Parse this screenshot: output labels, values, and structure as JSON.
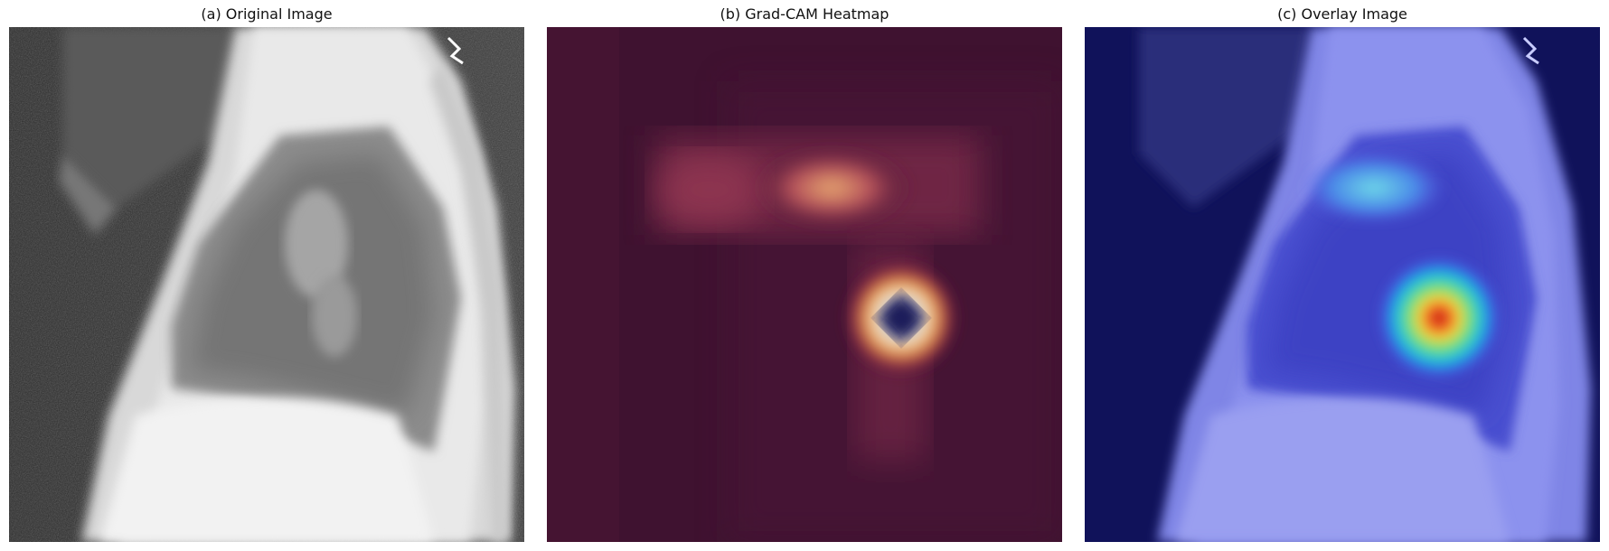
{
  "figure": {
    "panels": [
      {
        "id": "a",
        "title": "(a) Original Image"
      },
      {
        "id": "b",
        "title": "(b) Grad-CAM Heatmap"
      },
      {
        "id": "c",
        "title": "(c) Overlay Image"
      }
    ]
  },
  "colors": {
    "background": "#ffffff",
    "heatmap_base": "#3f1230",
    "heatmap_peak": "#1a1040",
    "overlay_tint": "#5a62e6"
  }
}
